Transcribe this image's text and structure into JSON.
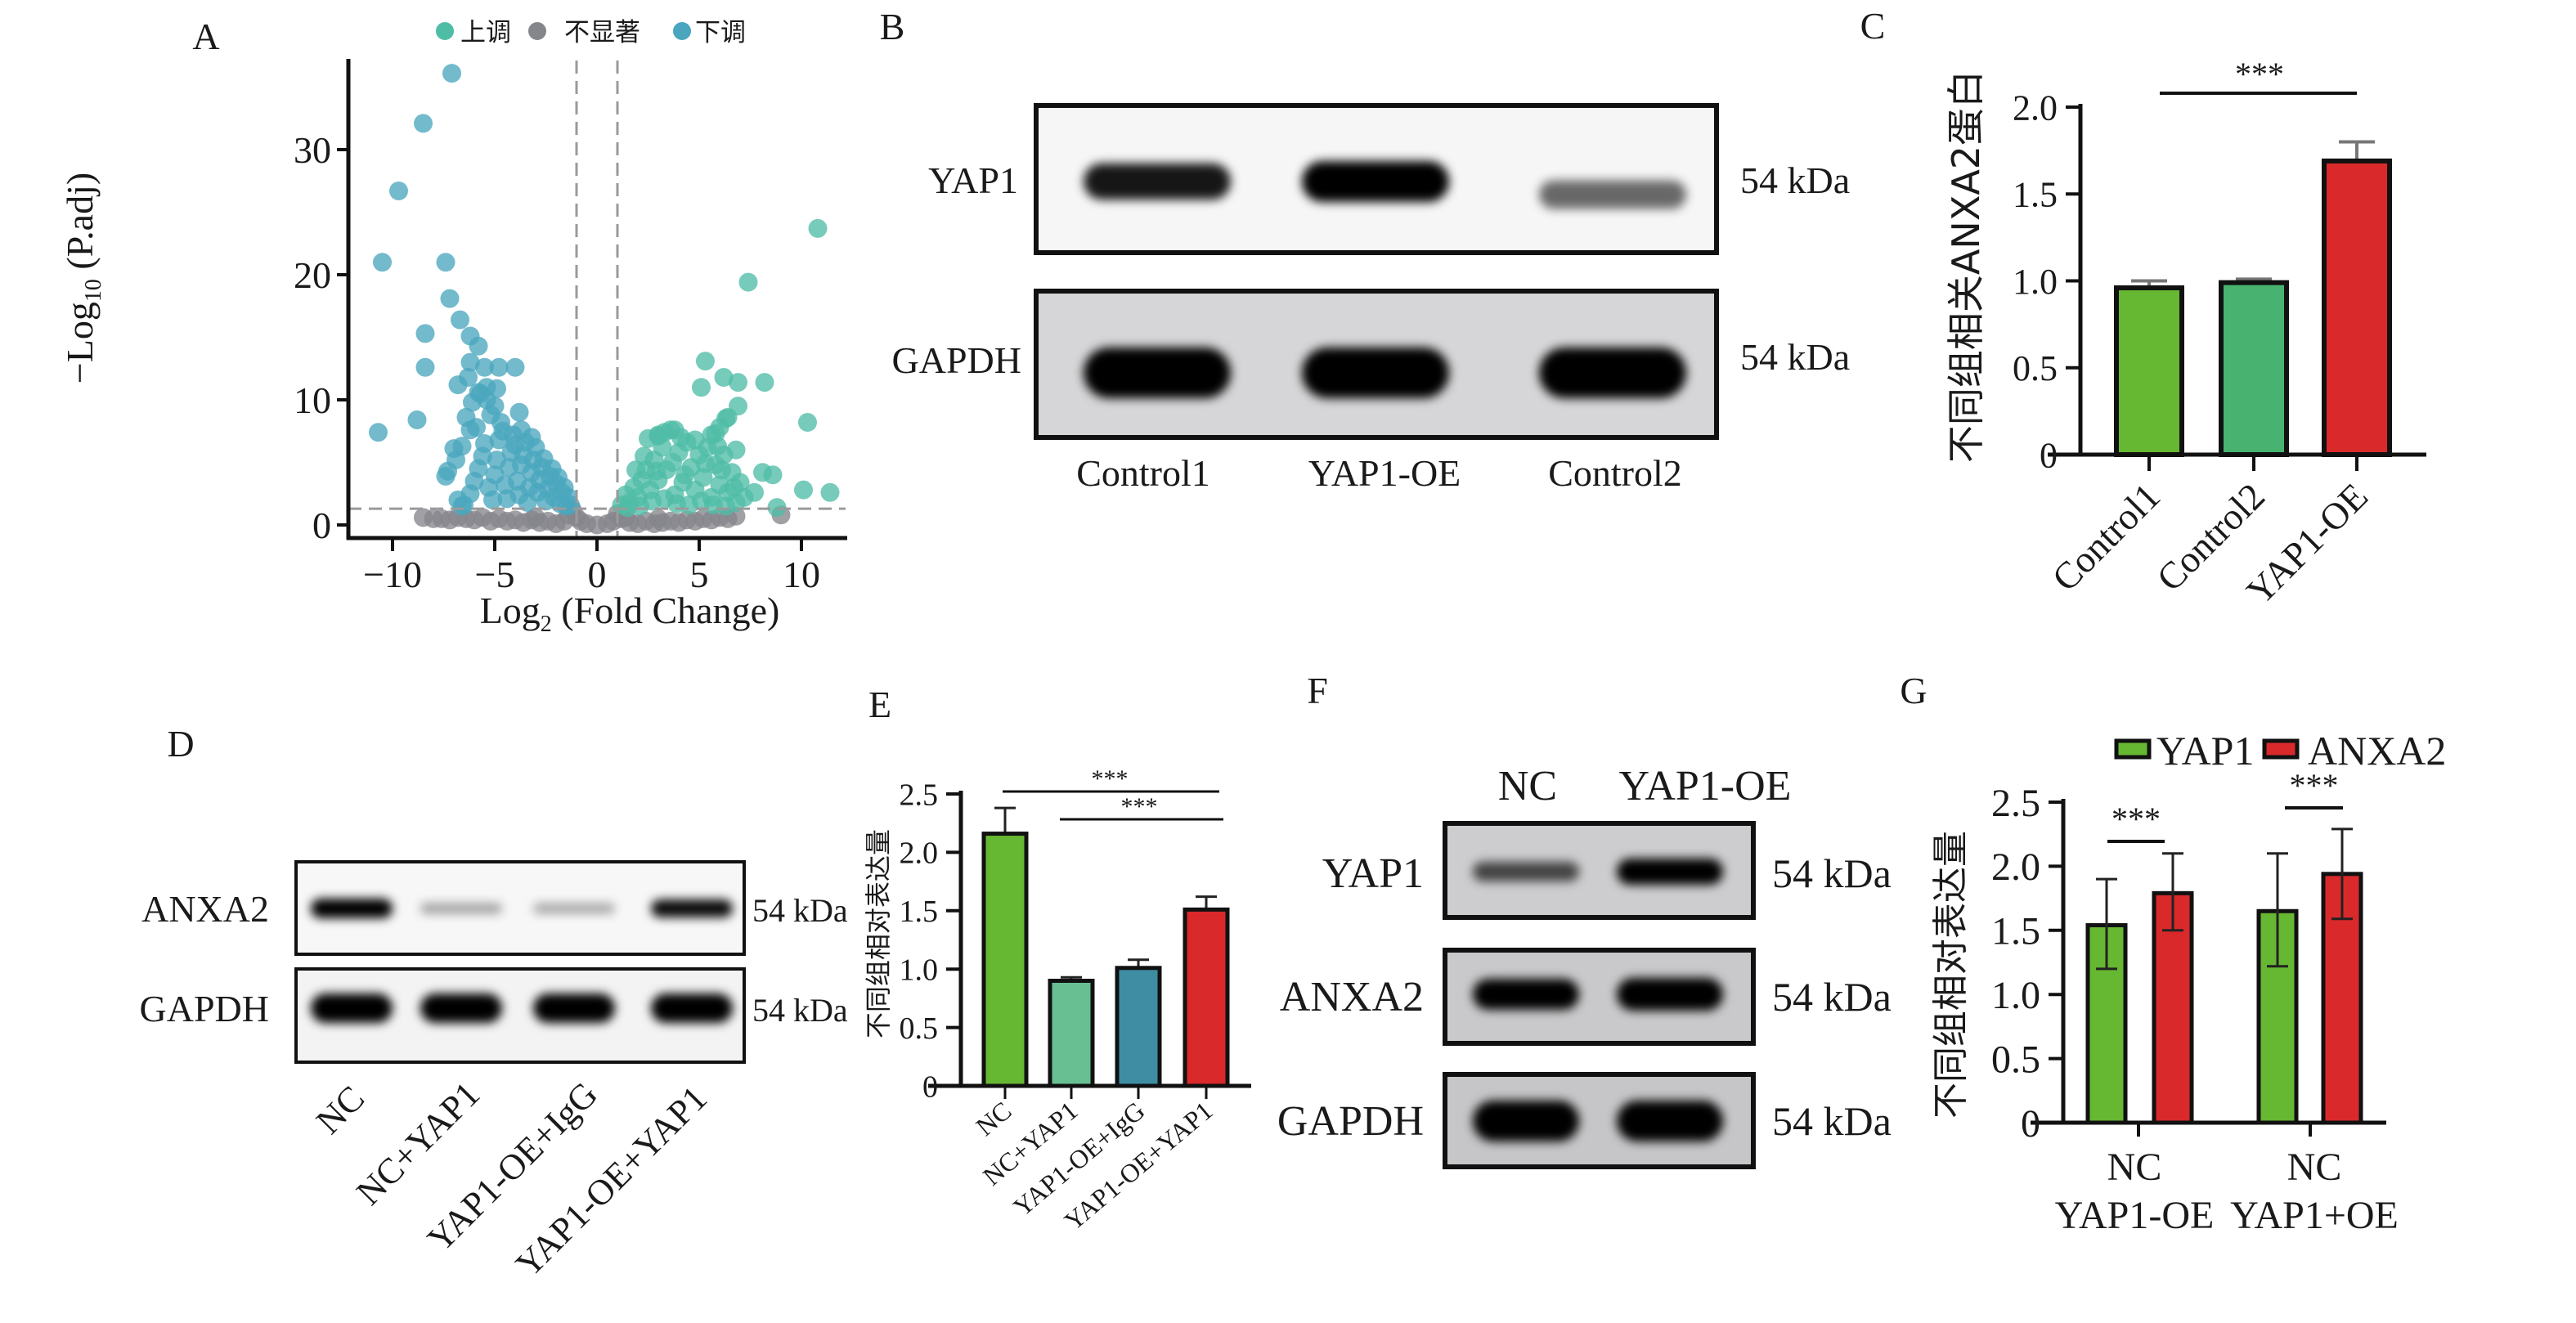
{
  "panel_labels": {
    "A": "A",
    "B": "B",
    "C": "C",
    "D": "D",
    "E": "E",
    "F": "F",
    "G": "G"
  },
  "blot_B": {
    "lanes": [
      "Control1",
      "YAP1-OE",
      "Control2"
    ],
    "rows": [
      {
        "protein": "YAP1",
        "size": "54 kDa",
        "band_intensity": [
          0.8,
          1.0,
          0.45
        ]
      },
      {
        "protein": "GAPDH",
        "size": "54 kDa",
        "band_intensity": [
          1.0,
          1.0,
          1.0
        ]
      }
    ]
  },
  "blot_D": {
    "lanes": [
      "NC",
      "NC+YAP1",
      "YAP1-OE+IgG",
      "YAP1-OE+YAP1"
    ],
    "rows": [
      {
        "protein": "ANXA2",
        "size": "54 kDa",
        "band_intensity": [
          1.0,
          0.2,
          0.18,
          0.85
        ]
      },
      {
        "protein": "GAPDH",
        "size": "54 kDa",
        "band_intensity": [
          1.0,
          1.0,
          1.0,
          1.0
        ]
      }
    ]
  },
  "blot_F": {
    "lanes": [
      "NC",
      "YAP1-OE"
    ],
    "rows": [
      {
        "protein": "YAP1",
        "size": "54 kDa",
        "band_intensity": [
          0.55,
          1.0
        ]
      },
      {
        "protein": "ANXA2",
        "size": "54 kDa",
        "band_intensity": [
          0.9,
          1.0
        ]
      },
      {
        "protein": "GAPDH",
        "size": "54 kDa",
        "band_intensity": [
          1.0,
          1.0
        ]
      }
    ]
  },
  "chart_data": [
    {
      "type": "scatter",
      "title": "",
      "xlabel_parts": [
        "Log",
        "2",
        " (Fold Change)"
      ],
      "ylabel_parts": [
        "−Log",
        "10",
        " (P.adj)"
      ],
      "xlim": [
        -12.2,
        12.2
      ],
      "ylim": [
        -1,
        37
      ],
      "xticks": [
        -10,
        -5,
        0,
        5,
        10
      ],
      "xtick_labels": [
        "−10",
        "−5",
        "0",
        "5",
        "10"
      ],
      "yticks": [
        0,
        10,
        20,
        30
      ],
      "ytick_labels": [
        "0",
        "10",
        "20",
        "30"
      ],
      "thresholds": {
        "log2fc": [
          -1,
          1
        ],
        "neg_log10_padj": 1.3
      },
      "legend_position": "top",
      "series": [
        {
          "name": "上调",
          "color": "#4fbda6",
          "points": [
            [
              10.8,
              23.7
            ],
            [
              7.4,
              19.4
            ],
            [
              5.3,
              13.1
            ],
            [
              5.1,
              11.0
            ],
            [
              6.2,
              11.8
            ],
            [
              6.9,
              11.4
            ],
            [
              8.2,
              11.4
            ],
            [
              6.9,
              9.5
            ],
            [
              6.3,
              8.5
            ],
            [
              10.3,
              8.2
            ],
            [
              6.8,
              6.0
            ],
            [
              8.1,
              4.2
            ],
            [
              8.6,
              4.0
            ],
            [
              10.1,
              2.8
            ],
            [
              11.4,
              2.6
            ],
            [
              8.8,
              1.4
            ],
            [
              7.7,
              2.6
            ],
            [
              3.8,
              7.6
            ],
            [
              3.0,
              7.1
            ],
            [
              5.8,
              7.3
            ],
            [
              1.2,
              1.6
            ],
            [
              1.4,
              2.4
            ],
            [
              1.6,
              1.8
            ],
            [
              1.8,
              3
            ],
            [
              2,
              2.2
            ],
            [
              2.2,
              3.6
            ],
            [
              2.4,
              4.4
            ],
            [
              2.6,
              2.8
            ],
            [
              2.8,
              5.2
            ],
            [
              3,
              3.6
            ],
            [
              3.2,
              6.2
            ],
            [
              3.4,
              4.4
            ],
            [
              3.6,
              7.6
            ],
            [
              3.8,
              2.4
            ],
            [
              4,
              5.8
            ],
            [
              4.2,
              3.4
            ],
            [
              4.4,
              6.6
            ],
            [
              4.6,
              4.6
            ],
            [
              4.8,
              2.8
            ],
            [
              5,
              5.6
            ],
            [
              5.2,
              3.8
            ],
            [
              5.4,
              6.2
            ],
            [
              5.6,
              2.2
            ],
            [
              5.8,
              4.8
            ],
            [
              6,
              3.2
            ],
            [
              6.2,
              5.6
            ],
            [
              6.4,
              2.6
            ],
            [
              6.6,
              4.2
            ],
            [
              6.8,
              1.8
            ],
            [
              7,
              3.4
            ],
            [
              1.5,
              1.4
            ],
            [
              2.1,
              1.5
            ],
            [
              2.7,
              1.9
            ],
            [
              3.3,
              2.1
            ],
            [
              3.9,
              1.7
            ],
            [
              4.5,
              1.6
            ],
            [
              5.1,
              1.9
            ],
            [
              5.7,
              1.6
            ],
            [
              6.3,
              1.5
            ],
            [
              2.5,
              6.9
            ],
            [
              3,
              7.2
            ],
            [
              3.3,
              7.4
            ],
            [
              4.1,
              7
            ],
            [
              4.8,
              6.8
            ],
            [
              5.6,
              7.2
            ],
            [
              6,
              7.8
            ],
            [
              6.4,
              8.6
            ],
            [
              3.7,
              5
            ],
            [
              4.3,
              4
            ],
            [
              5.3,
              4.9
            ],
            [
              6.1,
              4.4
            ],
            [
              2.9,
              4.3
            ],
            [
              2.3,
              5.5
            ],
            [
              1.9,
              4.4
            ],
            [
              6.7,
              3.0
            ],
            [
              7.2,
              2.2
            ],
            [
              5.9,
              6.3
            ]
          ]
        },
        {
          "name": "不显著",
          "color": "#85858c",
          "points": [
            [
              -8.5,
              0.6
            ],
            [
              -8,
              0.5
            ],
            [
              -7.6,
              0.5
            ],
            [
              -7.2,
              0.4
            ],
            [
              -6.8,
              0.6
            ],
            [
              -6.4,
              0.5
            ],
            [
              -6,
              0.4
            ],
            [
              -5.6,
              0.6
            ],
            [
              -5.2,
              0.3
            ],
            [
              -4.8,
              0.5
            ],
            [
              -4.4,
              0.3
            ],
            [
              -4,
              0.4
            ],
            [
              -3.6,
              0.2
            ],
            [
              -3.2,
              0.4
            ],
            [
              -2.8,
              0.2
            ],
            [
              -2.4,
              0.3
            ],
            [
              -2,
              0.1
            ],
            [
              -1.6,
              0.3
            ],
            [
              -1.2,
              1.2
            ],
            [
              -1,
              0.6
            ],
            [
              -0.8,
              0.3
            ],
            [
              -0.5,
              0.1
            ],
            [
              0,
              0
            ],
            [
              0.5,
              0.1
            ],
            [
              0.8,
              0.3
            ],
            [
              1,
              0.9
            ],
            [
              1.2,
              0.5
            ],
            [
              1.6,
              0.2
            ],
            [
              2,
              0.1
            ],
            [
              2.4,
              0.3
            ],
            [
              2.8,
              0.1
            ],
            [
              3.2,
              0.2
            ],
            [
              3.6,
              0.3
            ],
            [
              4,
              0.2
            ],
            [
              4.4,
              0.4
            ],
            [
              4.8,
              0.3
            ],
            [
              5.2,
              0.5
            ],
            [
              5.6,
              0.4
            ],
            [
              6,
              0.6
            ],
            [
              6.4,
              0.5
            ],
            [
              6.8,
              0.7
            ],
            [
              9,
              0.8
            ],
            [
              -3,
              0.6
            ],
            [
              1.4,
              0.6
            ],
            [
              3,
              0.5
            ],
            [
              -1.4,
              0.8
            ]
          ]
        },
        {
          "name": "下调",
          "color": "#4aa6be",
          "points": [
            [
              -7.1,
              36.1
            ],
            [
              -8.5,
              32.1
            ],
            [
              -9.7,
              26.7
            ],
            [
              -10.5,
              21.0
            ],
            [
              -7.4,
              21.0
            ],
            [
              -10.7,
              7.4
            ],
            [
              -8.8,
              8.4
            ],
            [
              -8.4,
              15.3
            ],
            [
              -8.4,
              12.6
            ],
            [
              -7.2,
              18.1
            ],
            [
              -6.7,
              16.4
            ],
            [
              -6.2,
              15.1
            ],
            [
              -5.8,
              14.3
            ],
            [
              -6.2,
              13.0
            ],
            [
              -5.5,
              12.6
            ],
            [
              -4.8,
              12.6
            ],
            [
              -4.0,
              12.6
            ],
            [
              -6.8,
              11.2
            ],
            [
              -4.9,
              10.9
            ],
            [
              -3.8,
              9.0
            ],
            [
              -5.8,
              10.6
            ],
            [
              -5.4,
              10.0
            ],
            [
              -6.2,
              7.6
            ],
            [
              -7.0,
              6.1
            ],
            [
              -7.3,
              4.3
            ],
            [
              -7.4,
              3.9
            ],
            [
              -6.8,
              2
            ],
            [
              -6.5,
              1.6
            ],
            [
              -6.2,
              2.5
            ],
            [
              -6,
              3.5
            ],
            [
              -5.8,
              4.5
            ],
            [
              -5.6,
              5.5
            ],
            [
              -5.5,
              6.5
            ],
            [
              -5.3,
              3
            ],
            [
              -5.1,
              2
            ],
            [
              -5,
              4
            ],
            [
              -4.9,
              5.2
            ],
            [
              -4.8,
              6.8
            ],
            [
              -4.6,
              7.5
            ],
            [
              -4.5,
              3.2
            ],
            [
              -4.4,
              2.1
            ],
            [
              -4.3,
              4.6
            ],
            [
              -4.2,
              5.8
            ],
            [
              -4.0,
              6.4
            ],
            [
              -3.9,
              3.5
            ],
            [
              -3.8,
              2.4
            ],
            [
              -3.7,
              4.8
            ],
            [
              -3.6,
              5.6
            ],
            [
              -3.5,
              6.6
            ],
            [
              -3.4,
              1.8
            ],
            [
              -3.3,
              3
            ],
            [
              -3.2,
              4.2
            ],
            [
              -3.1,
              5.2
            ],
            [
              -3,
              6.2
            ],
            [
              -2.9,
              2.6
            ],
            [
              -2.8,
              3.6
            ],
            [
              -2.7,
              4.6
            ],
            [
              -2.6,
              5.3
            ],
            [
              -2.5,
              1.9
            ],
            [
              -2.4,
              2.9
            ],
            [
              -2.3,
              3.9
            ],
            [
              -2.2,
              4.5
            ],
            [
              -2.1,
              2.2
            ],
            [
              -2,
              3.3
            ],
            [
              -1.9,
              3.8
            ],
            [
              -1.8,
              1.7
            ],
            [
              -1.7,
              2.6
            ],
            [
              -1.6,
              3
            ],
            [
              -1.5,
              1.5
            ],
            [
              -1.4,
              2.2
            ],
            [
              -1.3,
              1.6
            ],
            [
              -6.4,
              8.6
            ],
            [
              -6.1,
              9.8
            ],
            [
              -5.9,
              7.8
            ],
            [
              -5.7,
              10.5
            ],
            [
              -5.2,
              8.8
            ],
            [
              -5.0,
              9.5
            ],
            [
              -4.7,
              8.2
            ],
            [
              -6.6,
              6.3
            ],
            [
              -6.9,
              5.2
            ],
            [
              -4.1,
              7.2
            ],
            [
              -3.7,
              7.6
            ],
            [
              -3.2,
              7
            ],
            [
              -5.4,
              11
            ],
            [
              -6.3,
              11.8
            ],
            [
              -6.6,
              1.5
            ]
          ]
        }
      ]
    },
    {
      "type": "bar",
      "title": "",
      "ylabel": "不同组相关ANXA2蛋白",
      "xlabel": "",
      "ylim": [
        0,
        2.0
      ],
      "yticks": [
        0,
        0.5,
        1.0,
        1.5,
        2.0
      ],
      "ytick_labels": [
        "0",
        "0.5",
        "1.0",
        "1.5",
        "2.0"
      ],
      "categories": [
        "Control1",
        "Control2",
        "YAP1-OE"
      ],
      "values": [
        0.96,
        0.99,
        1.69
      ],
      "err_high": [
        1.0,
        1.01,
        1.8
      ],
      "colors": [
        "#66b732",
        "#48b370",
        "#d9292b"
      ],
      "significance": [
        {
          "from": 0,
          "to": 2,
          "label": "***"
        }
      ]
    },
    {
      "type": "bar",
      "title": "",
      "ylabel": "不同组相对表达量",
      "xlabel": "",
      "ylim": [
        0,
        2.5
      ],
      "yticks": [
        0,
        0.5,
        1.0,
        1.5,
        2.0,
        2.5
      ],
      "ytick_labels": [
        "0",
        "0.5",
        "1.0",
        "1.5",
        "2.0",
        "2.5"
      ],
      "categories": [
        "NC",
        "NC+YAP1",
        "YAP1-OE+IgG",
        "YAP1-OE+YAP1"
      ],
      "values": [
        2.16,
        0.9,
        1.01,
        1.51
      ],
      "err_high": [
        2.38,
        0.93,
        1.08,
        1.62
      ],
      "colors": [
        "#66b732",
        "#68c092",
        "#3f8da3",
        "#d9292b"
      ],
      "significance": [
        {
          "from": 0,
          "to": 3,
          "label": "***"
        },
        {
          "from": 1,
          "to": 3,
          "label": "***"
        }
      ]
    },
    {
      "type": "bar",
      "title": "",
      "ylabel": "不同组相对表达量",
      "xlabel": "",
      "ylim": [
        0,
        2.5
      ],
      "yticks": [
        0,
        0.5,
        1.0,
        1.5,
        2.0,
        2.5
      ],
      "ytick_labels": [
        "0",
        "0.5",
        "1.0",
        "1.5",
        "2.0",
        "2.5"
      ],
      "categories": [
        {
          "line1": "NC",
          "line2": "YAP1-OE"
        },
        {
          "line1": "NC",
          "line2": "YAP1+OE"
        }
      ],
      "legend_position": "top",
      "series": [
        {
          "name": "YAP1",
          "color": "#66b732",
          "values": [
            1.54,
            1.65
          ],
          "err_high": [
            1.9,
            2.1
          ],
          "err_low": [
            1.2,
            1.22
          ]
        },
        {
          "name": "ANXA2",
          "color": "#d9292b",
          "values": [
            1.79,
            1.94
          ],
          "err_high": [
            2.1,
            2.29
          ],
          "err_low": [
            1.5,
            1.59
          ]
        }
      ],
      "significance": [
        {
          "group": 0,
          "label": "***"
        },
        {
          "group": 1,
          "label": "***"
        }
      ]
    }
  ]
}
